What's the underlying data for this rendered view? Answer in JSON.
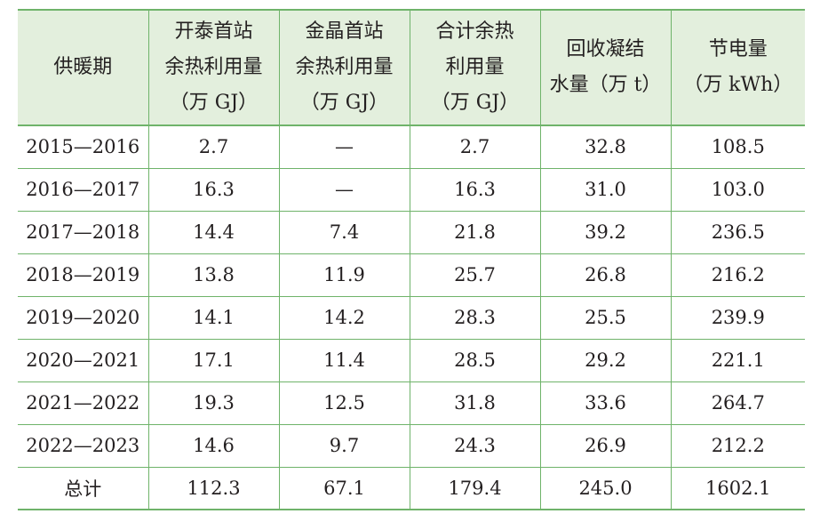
{
  "table": {
    "headers": [
      {
        "lines": [
          "供暖期"
        ]
      },
      {
        "lines": [
          "开泰首站",
          "余热利用量",
          "（万 GJ）"
        ]
      },
      {
        "lines": [
          "金晶首站",
          "余热利用量",
          "（万 GJ）"
        ]
      },
      {
        "lines": [
          "合计余热",
          "利用量",
          "（万 GJ）"
        ]
      },
      {
        "lines": [
          "回收凝结",
          "水量（万 t）"
        ]
      },
      {
        "lines": [
          "节电量",
          "（万 kWh）"
        ]
      }
    ],
    "rows": [
      [
        "2015—2016",
        "2.7",
        "—",
        "2.7",
        "32.8",
        "108.5"
      ],
      [
        "2016—2017",
        "16.3",
        "—",
        "16.3",
        "31.0",
        "103.0"
      ],
      [
        "2017—2018",
        "14.4",
        "7.4",
        "21.8",
        "39.2",
        "236.5"
      ],
      [
        "2018—2019",
        "13.8",
        "11.9",
        "25.7",
        "26.8",
        "216.2"
      ],
      [
        "2019—2020",
        "14.1",
        "14.2",
        "28.3",
        "25.5",
        "239.9"
      ],
      [
        "2020—2021",
        "17.1",
        "11.4",
        "28.5",
        "29.2",
        "221.1"
      ],
      [
        "2021—2022",
        "19.3",
        "12.5",
        "31.8",
        "33.6",
        "264.7"
      ],
      [
        "2022—2023",
        "14.6",
        "9.7",
        "24.3",
        "26.9",
        "212.2"
      ]
    ],
    "total": [
      "总计",
      "112.3",
      "67.1",
      "179.4",
      "245.0",
      "1602.1"
    ]
  },
  "colors": {
    "header_bg": "#e3efdd",
    "rule": "#6fb36a",
    "text": "#231f20"
  }
}
